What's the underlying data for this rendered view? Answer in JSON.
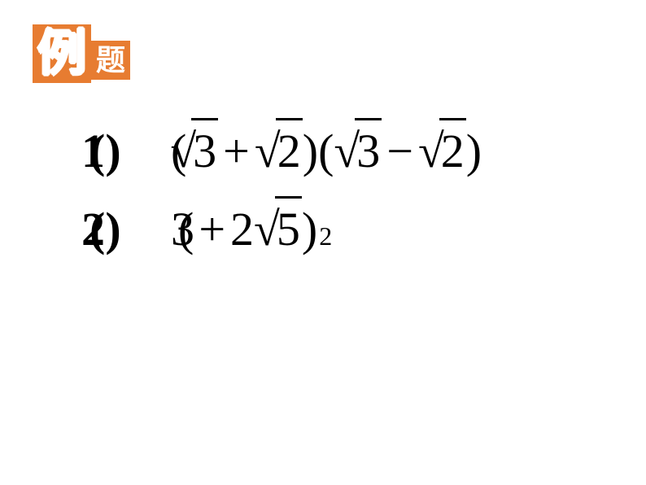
{
  "badge": {
    "li": "例",
    "ti": "题"
  },
  "problems": [
    {
      "marker_digit": "1",
      "marker_paren": "()",
      "items": [
        {
          "type": "paren",
          "v": "("
        },
        {
          "type": "sqrt",
          "v": "3",
          "tight": true
        },
        {
          "type": "op",
          "v": "+"
        },
        {
          "type": "sqrt",
          "v": "2"
        },
        {
          "type": "paren",
          "v": ")"
        },
        {
          "type": "paren",
          "v": "("
        },
        {
          "type": "sqrt",
          "v": "3"
        },
        {
          "type": "op",
          "v": "−"
        },
        {
          "type": "sqrt",
          "v": "2"
        },
        {
          "type": "paren",
          "v": ")"
        }
      ]
    },
    {
      "marker_digit": "2",
      "marker_paren": "()",
      "items": [
        {
          "type": "text",
          "v": "3"
        },
        {
          "type": "paren",
          "v": "(",
          "tight": true
        },
        {
          "type": "op",
          "v": "+"
        },
        {
          "type": "text",
          "v": "2"
        },
        {
          "type": "sqrt",
          "v": "5"
        },
        {
          "type": "paren",
          "v": ")"
        },
        {
          "type": "sup",
          "v": "2"
        }
      ]
    }
  ],
  "colors": {
    "badge_bg": "#e77c31",
    "badge_fg": "#ffffff",
    "text": "#000000",
    "bg": "#ffffff"
  },
  "fonts": {
    "badge": "SimHei",
    "math": "Times New Roman"
  }
}
